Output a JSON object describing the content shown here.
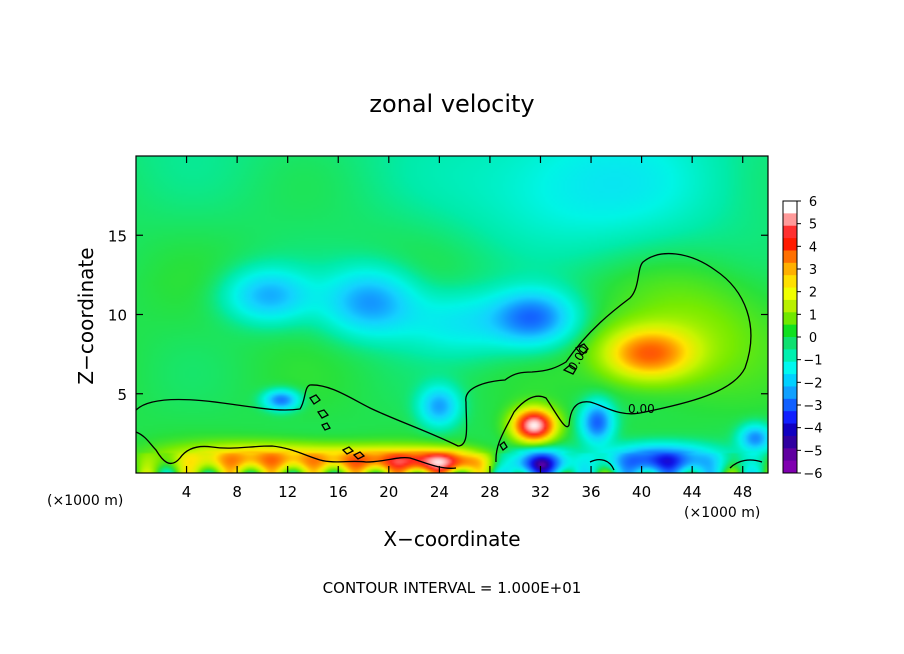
{
  "chart_data": {
    "type": "heatmap",
    "title": "zonal velocity",
    "xlabel": "X−coordinate",
    "ylabel": "Z−coordinate",
    "x_unit": "(×1000 m)",
    "y_unit": "(×1000 m)",
    "xlim": [
      0,
      50
    ],
    "ylim": [
      0,
      20
    ],
    "x_ticks": [
      4,
      8,
      12,
      16,
      20,
      24,
      28,
      32,
      36,
      40,
      44,
      48
    ],
    "y_ticks": [
      5,
      10,
      15
    ],
    "contour_interval_text": "CONTOUR INTERVAL = 1.000E+01",
    "contour_labels": [
      "0.00",
      "0.00"
    ],
    "colorbar": {
      "ticks": [
        "6",
        "5",
        "4",
        "3",
        "2",
        "1",
        "0",
        "−1",
        "−2",
        "−3",
        "−4",
        "−5",
        "−6"
      ],
      "colors": [
        "#ffffff",
        "#ff9a9a",
        "#ff3030",
        "#ff1a00",
        "#ff7000",
        "#ffb000",
        "#ffe000",
        "#f0ff00",
        "#b8f000",
        "#70e800",
        "#10e020",
        "#10e070",
        "#00f0b0",
        "#00f8f0",
        "#00d0ff",
        "#10a0ff",
        "#1060ff",
        "#1020ff",
        "#1000c0",
        "#3000a0",
        "#6000a0",
        "#8000b0"
      ]
    },
    "features": [
      {
        "kind": "jet_negative",
        "x": 10.5,
        "z": 11.2,
        "sx": 3.2,
        "sz": 1.6,
        "value": -2.3
      },
      {
        "kind": "jet_negative",
        "x": 18.5,
        "z": 10.8,
        "sx": 3.5,
        "sz": 2.0,
        "value": -2.6
      },
      {
        "kind": "jet_negative",
        "x": 26.0,
        "z": 9.5,
        "sx": 5.0,
        "sz": 2.0,
        "value": -1.4
      },
      {
        "kind": "jet_negative",
        "x": 31.5,
        "z": 9.8,
        "sx": 3.0,
        "sz": 1.6,
        "value": -3.0
      },
      {
        "kind": "upper_negative",
        "x": 36.0,
        "z": 18.0,
        "sx": 10.0,
        "sz": 4.0,
        "value": -1.2
      },
      {
        "kind": "positive_core",
        "x": 40.5,
        "z": 7.5,
        "sx": 3.5,
        "sz": 1.6,
        "value": 3.2
      },
      {
        "kind": "positive_dome",
        "x": 44.0,
        "z": 9.0,
        "sx": 6.0,
        "sz": 3.5,
        "value": 0.8
      },
      {
        "kind": "surface_positive",
        "x": 10.0,
        "z": 0.9,
        "sx": 7.0,
        "sz": 0.9,
        "value": 3.0
      },
      {
        "kind": "surface_positive",
        "x": 20.0,
        "z": 0.8,
        "sx": 5.0,
        "sz": 0.8,
        "value": 3.0
      },
      {
        "kind": "surface_positive",
        "x": 24.5,
        "z": 0.7,
        "sx": 3.0,
        "sz": 0.7,
        "value": 3.5
      },
      {
        "kind": "plume_positive",
        "x": 31.5,
        "z": 3.0,
        "sx": 1.6,
        "sz": 1.0,
        "value": 5.8
      },
      {
        "kind": "surface_negative",
        "x": 32.0,
        "z": 0.6,
        "sx": 2.0,
        "sz": 0.8,
        "value": -5.0
      },
      {
        "kind": "surface_negative",
        "x": 36.5,
        "z": 3.2,
        "sx": 1.2,
        "sz": 1.2,
        "value": -3.5
      },
      {
        "kind": "surface_negative",
        "x": 41.5,
        "z": 0.8,
        "sx": 4.0,
        "sz": 0.9,
        "value": -4.5
      },
      {
        "kind": "negative_blob",
        "x": 11.5,
        "z": 4.6,
        "sx": 1.3,
        "sz": 0.6,
        "value": -3.2
      },
      {
        "kind": "negative_blob",
        "x": 24.0,
        "z": 4.2,
        "sx": 1.5,
        "sz": 1.2,
        "value": -2.5
      },
      {
        "kind": "negative_blob",
        "x": 49.0,
        "z": 2.2,
        "sx": 1.2,
        "sz": 0.8,
        "value": -2.8
      }
    ]
  }
}
